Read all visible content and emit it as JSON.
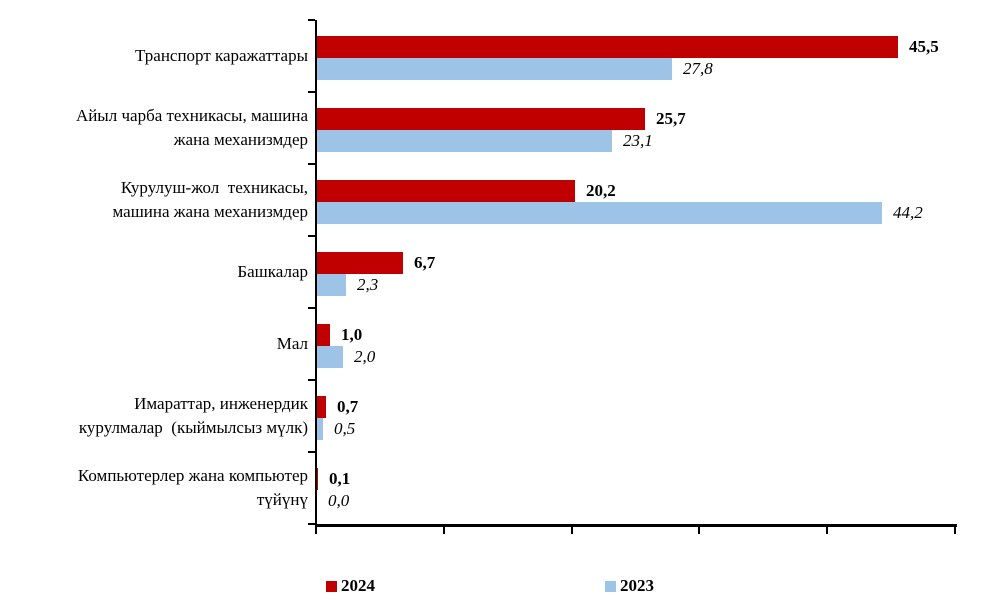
{
  "chart_data": {
    "type": "bar",
    "orientation": "horizontal",
    "title": "",
    "xlabel": "",
    "ylabel": "",
    "xlim": [
      0,
      50
    ],
    "x_tick_step": 10,
    "x_tick_labels_visible": false,
    "grid": false,
    "legend_position": "bottom",
    "background_color": "#ffffff",
    "axis_color": "#000000",
    "value_label_color": "#000000",
    "categories": [
      {
        "lines": [
          "Транспорт каражаттары"
        ]
      },
      {
        "lines": [
          "Айыл чарба техникасы, машина",
          "жана механизмдер"
        ]
      },
      {
        "lines": [
          "Курулуш-жол  техникасы,",
          "машина жана механизмдер"
        ]
      },
      {
        "lines": [
          "Башкалар"
        ]
      },
      {
        "lines": [
          "Мал"
        ]
      },
      {
        "lines": [
          "Имараттар, инженердик",
          "курулмалар  (кыймылсыз мүлк)"
        ]
      },
      {
        "lines": [
          "Компьютерлер жана компьютер",
          "түйүнү"
        ]
      }
    ],
    "series": [
      {
        "name": "2024",
        "color": "#C00000",
        "label_style": "bold",
        "values": [
          45.5,
          25.7,
          20.2,
          6.7,
          1.0,
          0.7,
          0.1
        ],
        "labels": [
          "45,5",
          "25,7",
          "20,2",
          "6,7",
          "1,0",
          "0,7",
          "0,1"
        ]
      },
      {
        "name": "2023",
        "color": "#9DC3E6",
        "label_style": "italic",
        "values": [
          27.8,
          23.1,
          44.2,
          2.3,
          2.0,
          0.5,
          0.0
        ],
        "labels": [
          "27,8",
          "23,1",
          "44,2",
          "2,3",
          "2,0",
          "0,5",
          "0,0"
        ]
      }
    ]
  }
}
